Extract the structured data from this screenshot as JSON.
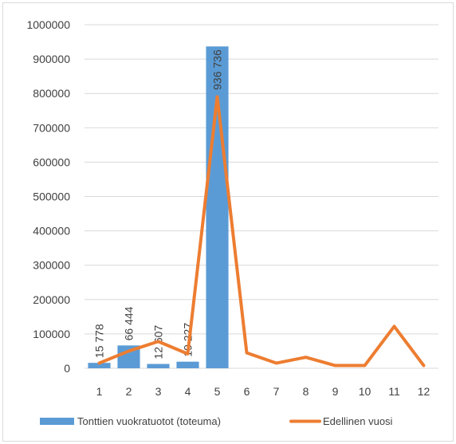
{
  "chart_data": {
    "type": "bar+line",
    "categories": [
      "1",
      "2",
      "3",
      "4",
      "5",
      "6",
      "7",
      "8",
      "9",
      "10",
      "11",
      "12"
    ],
    "series": [
      {
        "name": "Tonttien vuokratuotot (toteuma)",
        "kind": "bar",
        "color": "#5b9bd5",
        "values": [
          15778,
          66444,
          12607,
          19227,
          936736,
          null,
          null,
          null,
          null,
          null,
          null,
          null
        ],
        "data_labels": [
          "15 778",
          "66 444",
          "12 607",
          "19 227",
          "936 736"
        ]
      },
      {
        "name": "Edellinen vuosi",
        "kind": "line",
        "color": "#ed7d31",
        "values": [
          15000,
          50000,
          78000,
          42000,
          790000,
          45000,
          15000,
          32000,
          8000,
          8000,
          122000,
          8000
        ]
      }
    ],
    "y_ticks": [
      "0",
      "100000",
      "200000",
      "300000",
      "400000",
      "500000",
      "600000",
      "700000",
      "800000",
      "900000",
      "1000000"
    ],
    "ylim": [
      0,
      1000000
    ],
    "grid": true,
    "legend_position": "bottom"
  }
}
